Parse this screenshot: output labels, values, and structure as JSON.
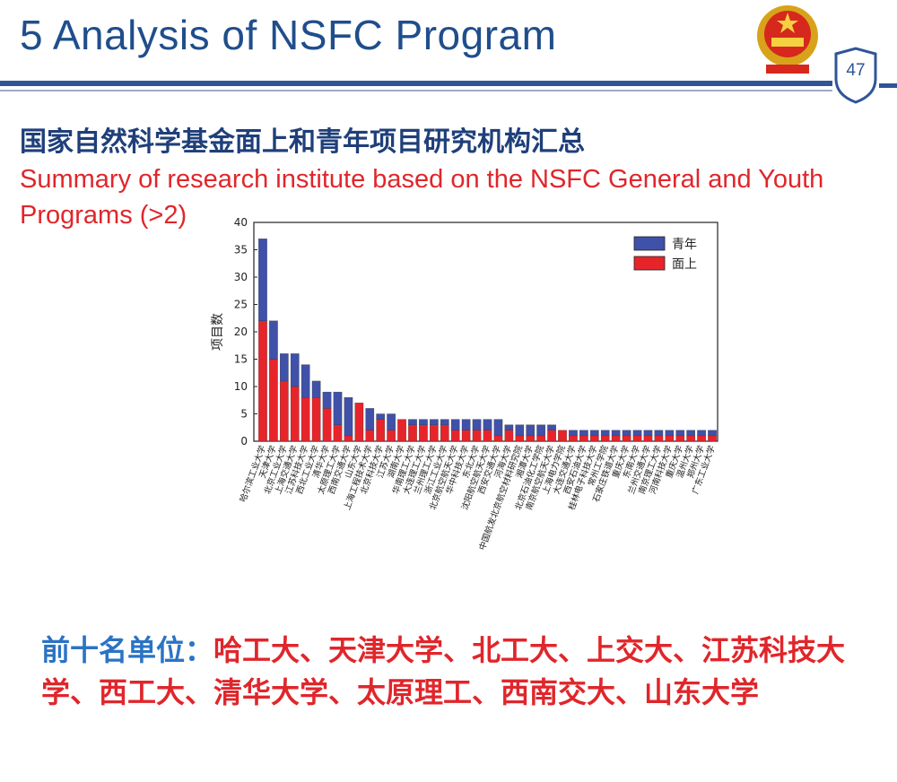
{
  "header": {
    "title": "5   Analysis of NSFC Program",
    "page_number": "47",
    "emblem": "national-emblem-icon",
    "badge_icon": "shield-badge-icon"
  },
  "subtitle": {
    "cn": "国家自然科学基金面上和青年项目研究机构汇总",
    "en": "Summary of research institute based on the NSFC General and Youth Programs (>2)"
  },
  "colors": {
    "title": "#1f4e8c",
    "heading": "#1f3f7a",
    "accent_red": "#e0262b",
    "bar_youth": "#3f51a8",
    "bar_general": "#e8242b",
    "top_label": "#2b73c4"
  },
  "top_units": {
    "label": "前十名单位：",
    "names": "哈工大、天津大学、北工大、上交大、江苏科技大学、西工大、清华大学、太原理工、西南交大、山东大学"
  },
  "chart_data": {
    "type": "bar",
    "stacked": true,
    "ylabel": "项目数",
    "xlabel": "",
    "ylim": [
      0,
      40
    ],
    "yticks": [
      0,
      5,
      10,
      15,
      20,
      25,
      30,
      35,
      40
    ],
    "legend_position": "top-right",
    "grid": false,
    "categories": [
      "哈尔滨工业大学",
      "天津大学",
      "北京工业大学",
      "上海交通大学",
      "江苏科技大学",
      "西北工业大学",
      "清华大学",
      "太原理工大学",
      "西南交通大学",
      "山东大学",
      "上海工程技术大学",
      "北京科技大学",
      "江苏大学",
      "湖南大学",
      "华南理工大学",
      "大连理工大学",
      "兰州理工大学",
      "浙江工业大学",
      "北京航空航天大学",
      "华中科技大学",
      "东北大学",
      "沈阳航空航天大学",
      "西安交通大学",
      "河海大学",
      "中国航发北京航空材料研究院",
      "湘潭大学",
      "北京石油化工学院",
      "南京航空航天大学",
      "上海电力学院",
      "大连交通大学",
      "西安石油大学",
      "桂林电子科技大学",
      "常州工学院",
      "石家庄铁道大学",
      "重庆大学",
      "东南大学",
      "兰州交通大学",
      "南京理工大学",
      "河南科技大学",
      "重庆大学",
      "温州大学",
      "郑州大学",
      "广东工业大学"
    ],
    "x_labels_shown": [
      "哈尔滨工业大学",
      "天津大学",
      "北京工业大学",
      "上海交通大学",
      "江苏科技大学",
      "西北工业大学",
      "清华大学",
      "太原理工大学",
      "西南交通大学",
      "山东大学",
      "上海工程技术大学",
      "北京科技大学",
      "江苏大学",
      "湖南大学",
      "华南理工大学",
      "大连理工大学",
      "兰州理工大学",
      "浙江工业大学",
      "北京航空航天大学",
      "华中科技大学",
      "东北大学",
      "沈阳航空航天大学",
      "西安交通大学",
      "河海大学",
      "中国航发北京航空材料研究院",
      "湘潭大学",
      "北京石油化工学院",
      "南京航空航天大学",
      "上海电力学院",
      "大连交通大学",
      "西安石油大学",
      "桂林电子科技大学",
      "常州工学院",
      "石家庄铁道大学",
      "重庆大学",
      "东南大学",
      "兰州交通大学",
      "南京理工大学",
      "河南科技大学",
      "重庆大学",
      "温州大学",
      "郑州大学",
      "广东工业大学"
    ],
    "series": [
      {
        "name": "面上",
        "values": [
          22,
          15,
          11,
          10,
          8,
          8,
          6,
          3,
          1,
          7,
          2,
          4,
          2,
          4,
          3,
          3,
          3,
          3,
          2,
          2,
          2,
          2,
          1,
          2,
          1,
          1,
          1,
          2,
          2,
          1,
          1,
          1,
          1,
          1,
          1,
          1,
          1,
          1,
          1,
          1,
          1,
          1,
          1
        ]
      },
      {
        "name": "青年",
        "values": [
          15,
          7,
          5,
          6,
          6,
          3,
          3,
          6,
          7,
          0,
          4,
          1,
          3,
          0,
          1,
          1,
          1,
          1,
          2,
          2,
          2,
          2,
          3,
          1,
          2,
          2,
          2,
          1,
          0,
          1,
          1,
          1,
          1,
          1,
          1,
          1,
          1,
          1,
          1,
          1,
          1,
          1,
          1
        ]
      }
    ],
    "legend": [
      "青年",
      "面上"
    ]
  }
}
